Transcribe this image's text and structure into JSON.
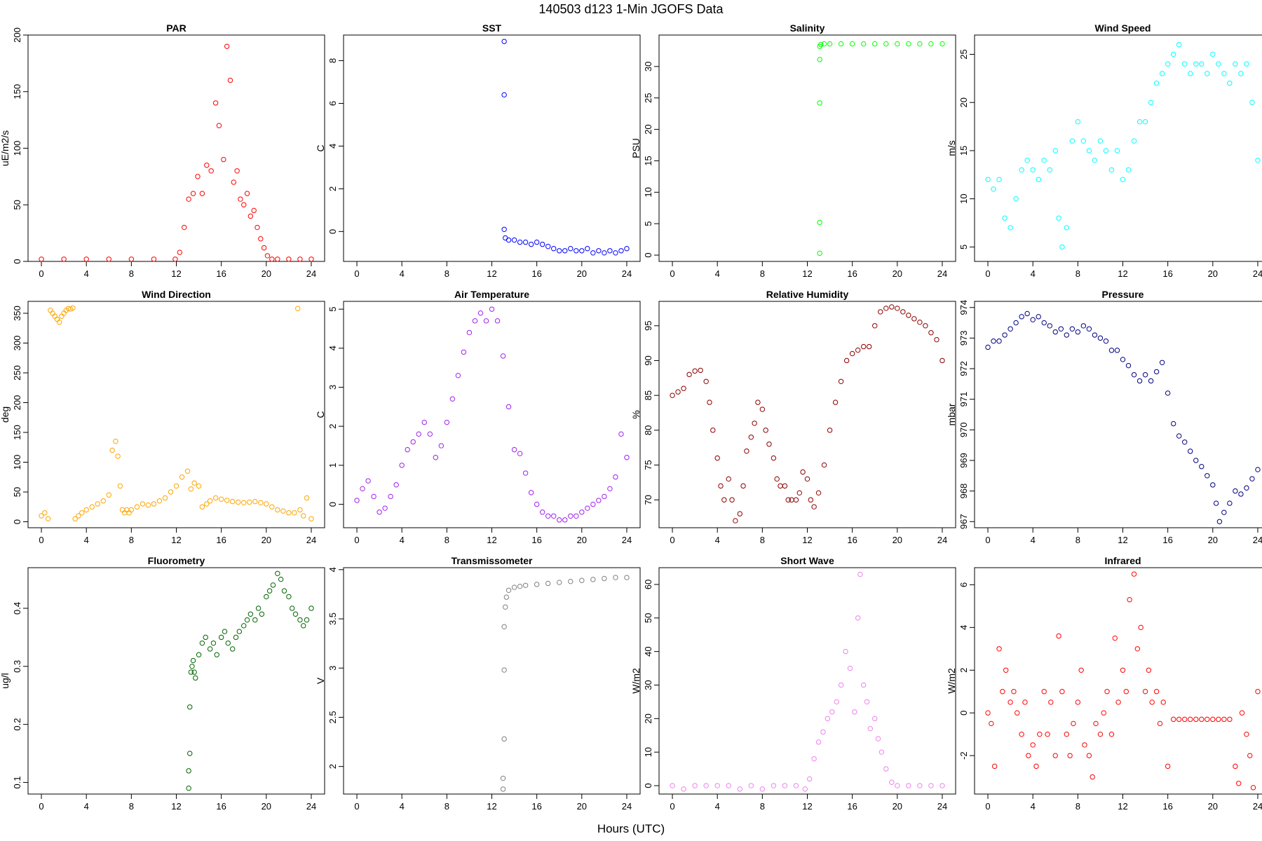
{
  "figure": {
    "title": "140503   d123   1-Min  JGOFS Data",
    "xlabel": "Hours (UTC)"
  },
  "chart_data": [
    {
      "type": "scatter",
      "title": "PAR",
      "ylabel": "uE/m2/s",
      "color": "#ff0000",
      "xlim": [
        0,
        24
      ],
      "ylim": [
        0,
        200
      ],
      "xticks": [
        0,
        4,
        8,
        12,
        16,
        20,
        24
      ],
      "yticks": [
        0,
        50,
        100,
        150,
        200
      ],
      "x": [
        0,
        2,
        4,
        6,
        8,
        10,
        11.9,
        12.3,
        12.7,
        13.1,
        13.5,
        13.9,
        14.3,
        14.7,
        15.1,
        15.5,
        15.8,
        16.2,
        16.5,
        16.8,
        17.1,
        17.4,
        17.7,
        18.0,
        18.3,
        18.6,
        18.9,
        19.2,
        19.5,
        19.8,
        20.1,
        20.5,
        21,
        22,
        23,
        24
      ],
      "y": [
        2,
        2,
        2,
        2,
        2,
        2,
        2,
        8,
        30,
        55,
        60,
        75,
        60,
        85,
        80,
        140,
        120,
        90,
        190,
        160,
        70,
        80,
        55,
        50,
        60,
        40,
        45,
        30,
        20,
        12,
        5,
        2,
        2,
        2,
        2,
        2
      ]
    },
    {
      "type": "scatter",
      "title": "SST",
      "ylabel": "C",
      "color": "#0000ff",
      "xlim": [
        0,
        24
      ],
      "ylim": [
        -1.4,
        9.2
      ],
      "xticks": [
        0,
        4,
        8,
        12,
        16,
        20,
        24
      ],
      "yticks": [
        0,
        2,
        4,
        6,
        8
      ],
      "x": [
        13.1,
        13.1,
        13.1,
        13.2,
        13.5,
        14,
        14.5,
        15,
        15.5,
        16,
        16.5,
        17,
        17.5,
        18,
        18.5,
        19,
        19.5,
        20,
        20.5,
        21,
        21.5,
        22,
        22.5,
        23,
        23.5,
        24
      ],
      "y": [
        8.9,
        6.4,
        0.1,
        -0.3,
        -0.4,
        -0.4,
        -0.5,
        -0.5,
        -0.6,
        -0.5,
        -0.6,
        -0.7,
        -0.8,
        -0.9,
        -0.9,
        -0.8,
        -0.9,
        -0.9,
        -0.8,
        -1.0,
        -0.9,
        -1.0,
        -0.9,
        -1.0,
        -0.9,
        -0.8
      ]
    },
    {
      "type": "scatter",
      "title": "Salinity",
      "ylabel": "PSU",
      "color": "#00ff00",
      "xlim": [
        0,
        24
      ],
      "ylim": [
        -1,
        35
      ],
      "xticks": [
        0,
        4,
        8,
        12,
        16,
        20,
        24
      ],
      "yticks": [
        0,
        5,
        10,
        15,
        20,
        25,
        30
      ],
      "x": [
        13.1,
        13.1,
        13.1,
        13.1,
        13.1,
        13.2,
        13.5,
        14,
        15,
        16,
        17,
        18,
        19,
        20,
        21,
        22,
        23,
        24
      ],
      "y": [
        0.3,
        5.2,
        24.2,
        31.1,
        33.2,
        33.5,
        33.6,
        33.6,
        33.6,
        33.6,
        33.6,
        33.6,
        33.6,
        33.6,
        33.6,
        33.6,
        33.6,
        33.6
      ]
    },
    {
      "type": "scatter",
      "title": "Wind Speed",
      "ylabel": "m/s",
      "color": "#00ffff",
      "xlim": [
        0,
        24
      ],
      "ylim": [
        3.5,
        27
      ],
      "xticks": [
        0,
        4,
        8,
        12,
        16,
        20,
        24
      ],
      "yticks": [
        5,
        10,
        15,
        20,
        25
      ],
      "x": [
        0,
        0.5,
        1,
        1.5,
        2,
        2.5,
        3,
        3.5,
        4,
        4.5,
        5,
        5.5,
        6,
        6.3,
        6.6,
        7,
        7.5,
        8,
        8.5,
        9,
        9.5,
        10,
        10.5,
        11,
        11.5,
        12,
        12.5,
        13,
        13.5,
        14,
        14.5,
        15,
        15.5,
        16,
        16.5,
        17,
        17.5,
        18,
        18.5,
        19,
        19.5,
        20,
        20.5,
        21,
        21.5,
        22,
        22.5,
        23,
        23.5,
        24
      ],
      "y": [
        12,
        11,
        12,
        8,
        7,
        10,
        13,
        14,
        13,
        12,
        14,
        13,
        15,
        8,
        5,
        7,
        16,
        18,
        16,
        15,
        14,
        16,
        15,
        13,
        15,
        12,
        13,
        16,
        18,
        18,
        20,
        22,
        23,
        24,
        25,
        26,
        24,
        23,
        24,
        24,
        23,
        25,
        24,
        23,
        22,
        24,
        23,
        24,
        20,
        14
      ]
    },
    {
      "type": "scatter",
      "title": "Wind Direction",
      "ylabel": "deg",
      "color": "#ffa500",
      "xlim": [
        0,
        24
      ],
      "ylim": [
        -10,
        370
      ],
      "xticks": [
        0,
        4,
        8,
        12,
        16,
        20,
        24
      ],
      "yticks": [
        0,
        50,
        100,
        150,
        200,
        250,
        300,
        350
      ],
      "x": [
        0,
        0.3,
        0.6,
        0.8,
        1.0,
        1.2,
        1.4,
        1.6,
        1.8,
        2.0,
        2.2,
        2.4,
        2.6,
        2.8,
        3.0,
        3.3,
        3.6,
        4,
        4.5,
        5,
        5.5,
        6,
        6.3,
        6.6,
        6.8,
        7.0,
        7.2,
        7.4,
        7.6,
        7.8,
        8,
        8.5,
        9,
        9.5,
        10,
        10.5,
        11,
        11.5,
        12,
        12.5,
        13,
        13.3,
        13.6,
        14,
        14.3,
        14.7,
        15,
        15.5,
        16,
        16.5,
        17,
        17.5,
        18,
        18.5,
        19,
        19.5,
        20,
        20.5,
        21,
        21.5,
        22,
        22.5,
        22.8,
        23,
        23.3,
        23.6,
        24
      ],
      "y": [
        10,
        15,
        5,
        355,
        350,
        345,
        340,
        335,
        345,
        350,
        355,
        358,
        357,
        359,
        5,
        10,
        15,
        20,
        25,
        30,
        35,
        45,
        120,
        135,
        110,
        60,
        20,
        15,
        20,
        15,
        20,
        25,
        30,
        28,
        30,
        35,
        40,
        50,
        60,
        75,
        85,
        55,
        65,
        60,
        25,
        30,
        35,
        40,
        38,
        36,
        34,
        33,
        32,
        33,
        34,
        32,
        30,
        25,
        20,
        18,
        15,
        15,
        358,
        20,
        10,
        40,
        5
      ]
    },
    {
      "type": "scatter",
      "title": "Air Temperature",
      "ylabel": "C",
      "color": "#a020f0",
      "xlim": [
        0,
        24
      ],
      "ylim": [
        -0.6,
        5.2
      ],
      "xticks": [
        0,
        4,
        8,
        12,
        16,
        20,
        24
      ],
      "yticks": [
        0,
        1,
        2,
        3,
        4,
        5
      ],
      "x": [
        0,
        0.5,
        1,
        1.5,
        2,
        2.5,
        3,
        3.5,
        4,
        4.5,
        5,
        5.5,
        6,
        6.5,
        7,
        7.5,
        8,
        8.5,
        9,
        9.5,
        10,
        10.5,
        11,
        11.5,
        12,
        12.5,
        13,
        13.5,
        14,
        14.5,
        15,
        15.5,
        16,
        16.5,
        17,
        17.5,
        18,
        18.5,
        19,
        19.5,
        20,
        20.5,
        21,
        21.5,
        22,
        22.5,
        23,
        23.5,
        24
      ],
      "y": [
        0.1,
        0.4,
        0.6,
        0.2,
        -0.2,
        -0.1,
        0.2,
        0.5,
        1.0,
        1.4,
        1.6,
        1.8,
        2.1,
        1.8,
        1.2,
        1.5,
        2.1,
        2.7,
        3.3,
        3.9,
        4.4,
        4.7,
        4.9,
        4.7,
        5.0,
        4.7,
        3.8,
        2.5,
        1.4,
        1.3,
        0.8,
        0.3,
        0.0,
        -0.2,
        -0.3,
        -0.3,
        -0.4,
        -0.4,
        -0.3,
        -0.3,
        -0.2,
        -0.1,
        0.0,
        0.1,
        0.2,
        0.4,
        0.7,
        1.8,
        1.2
      ]
    },
    {
      "type": "scatter",
      "title": "Relative Humidity",
      "ylabel": "%",
      "color": "#8b0000",
      "xlim": [
        0,
        24
      ],
      "ylim": [
        66,
        98.5
      ],
      "xticks": [
        0,
        4,
        8,
        12,
        16,
        20,
        24
      ],
      "yticks": [
        70,
        75,
        80,
        85,
        90,
        95
      ],
      "x": [
        0,
        0.5,
        1,
        1.5,
        2,
        2.5,
        3,
        3.3,
        3.6,
        4,
        4.3,
        4.6,
        5,
        5.3,
        5.6,
        6,
        6.3,
        6.6,
        7,
        7.3,
        7.6,
        8,
        8.3,
        8.6,
        9,
        9.3,
        9.6,
        10,
        10.3,
        10.6,
        11,
        11.3,
        11.6,
        12,
        12.3,
        12.6,
        13,
        13.5,
        14,
        14.5,
        15,
        15.5,
        16,
        16.5,
        17,
        17.5,
        18,
        18.5,
        19,
        19.5,
        20,
        20.5,
        21,
        21.5,
        22,
        22.5,
        23,
        23.5,
        24
      ],
      "y": [
        85,
        85.5,
        86,
        88,
        88.5,
        88.6,
        87,
        84,
        80,
        76,
        72,
        70,
        73,
        70,
        67,
        68,
        72,
        77,
        79,
        81,
        84,
        83,
        80,
        78,
        76,
        73,
        72,
        72,
        70,
        70,
        70,
        71,
        74,
        73,
        70,
        69,
        71,
        75,
        80,
        84,
        87,
        90,
        91,
        91.5,
        92,
        92,
        95,
        97,
        97.5,
        97.7,
        97.5,
        97,
        96.5,
        96,
        95.5,
        95,
        94,
        93,
        90
      ]
    },
    {
      "type": "scatter",
      "title": "Pressure",
      "ylabel": "mbar",
      "color": "#000080",
      "xlim": [
        0,
        24
      ],
      "ylim": [
        966.8,
        974.2
      ],
      "xticks": [
        0,
        4,
        8,
        12,
        16,
        20,
        24
      ],
      "yticks": [
        967,
        968,
        969,
        970,
        971,
        972,
        973,
        974
      ],
      "x": [
        0,
        0.5,
        1,
        1.5,
        2,
        2.5,
        3,
        3.5,
        4,
        4.5,
        5,
        5.5,
        6,
        6.5,
        7,
        7.5,
        8,
        8.5,
        9,
        9.5,
        10,
        10.5,
        11,
        11.5,
        12,
        12.5,
        13,
        13.5,
        14,
        14.5,
        15,
        15.5,
        16,
        16.5,
        17,
        17.5,
        18,
        18.5,
        19,
        19.5,
        20,
        20.3,
        20.6,
        21,
        21.5,
        22,
        22.5,
        23,
        23.5,
        24
      ],
      "y": [
        972.7,
        972.9,
        972.9,
        973.1,
        973.3,
        973.5,
        973.7,
        973.8,
        973.6,
        973.7,
        973.5,
        973.4,
        973.2,
        973.3,
        973.1,
        973.3,
        973.2,
        973.4,
        973.3,
        973.1,
        973.0,
        972.9,
        972.6,
        972.6,
        972.3,
        972.1,
        971.8,
        971.6,
        971.8,
        971.6,
        971.9,
        972.2,
        971.2,
        970.2,
        969.8,
        969.6,
        969.3,
        969.0,
        968.8,
        968.5,
        968.2,
        967.6,
        967.0,
        967.3,
        967.6,
        968.0,
        967.9,
        968.1,
        968.4,
        968.7
      ]
    },
    {
      "type": "scatter",
      "title": "Fluorometry",
      "ylabel": "ug/l",
      "color": "#006400",
      "xlim": [
        0,
        24
      ],
      "ylim": [
        0.08,
        0.47
      ],
      "xticks": [
        0,
        4,
        8,
        12,
        16,
        20,
        24
      ],
      "yticks": [
        0.1,
        0.2,
        0.3,
        0.4
      ],
      "x": [
        13.1,
        13.1,
        13.2,
        13.2,
        13.3,
        13.4,
        13.5,
        13.6,
        13.7,
        14,
        14.3,
        14.6,
        15,
        15.3,
        15.6,
        16,
        16.3,
        16.6,
        17,
        17.3,
        17.6,
        18,
        18.3,
        18.6,
        19,
        19.3,
        19.6,
        20,
        20.3,
        20.6,
        21,
        21.3,
        21.6,
        22,
        22.3,
        22.6,
        23,
        23.3,
        23.6,
        24
      ],
      "y": [
        0.09,
        0.12,
        0.15,
        0.23,
        0.29,
        0.3,
        0.31,
        0.29,
        0.28,
        0.32,
        0.34,
        0.35,
        0.33,
        0.34,
        0.32,
        0.35,
        0.36,
        0.34,
        0.33,
        0.35,
        0.36,
        0.37,
        0.38,
        0.39,
        0.38,
        0.4,
        0.39,
        0.42,
        0.43,
        0.44,
        0.46,
        0.45,
        0.43,
        0.42,
        0.4,
        0.39,
        0.38,
        0.37,
        0.38,
        0.4
      ]
    },
    {
      "type": "scatter",
      "title": "Transmissometer",
      "ylabel": "V",
      "color": "#808080",
      "xlim": [
        0,
        24
      ],
      "ylim": [
        1.72,
        4.02
      ],
      "xticks": [
        0,
        4,
        8,
        12,
        16,
        20,
        24
      ],
      "yticks": [
        2.0,
        2.5,
        3.0,
        3.5,
        4.0
      ],
      "x": [
        13.0,
        13.0,
        13.1,
        13.1,
        13.1,
        13.2,
        13.3,
        13.5,
        14,
        14.5,
        15,
        16,
        17,
        18,
        19,
        20,
        21,
        22,
        23,
        24
      ],
      "y": [
        1.77,
        1.88,
        2.28,
        2.98,
        3.42,
        3.62,
        3.72,
        3.79,
        3.82,
        3.83,
        3.84,
        3.85,
        3.86,
        3.87,
        3.88,
        3.89,
        3.9,
        3.91,
        3.92,
        3.92
      ]
    },
    {
      "type": "scatter",
      "title": "Short Wave",
      "ylabel": "W/m2",
      "color": "#ee82ee",
      "xlim": [
        0,
        24
      ],
      "ylim": [
        -2.5,
        65
      ],
      "xticks": [
        0,
        4,
        8,
        12,
        16,
        20,
        24
      ],
      "yticks": [
        0,
        10,
        20,
        30,
        40,
        50,
        60
      ],
      "x": [
        0,
        1,
        2,
        3,
        4,
        5,
        6,
        7,
        8,
        9,
        10,
        11,
        11.8,
        12.2,
        12.6,
        13,
        13.4,
        13.8,
        14.2,
        14.6,
        15,
        15.4,
        15.8,
        16.2,
        16.5,
        16.7,
        17,
        17.3,
        17.6,
        18,
        18.3,
        18.6,
        19,
        19.5,
        20,
        21,
        22,
        23,
        24
      ],
      "y": [
        0,
        -1,
        0,
        0,
        0,
        0,
        -1,
        0,
        -1,
        0,
        0,
        0,
        -1,
        2,
        8,
        13,
        16,
        20,
        22,
        25,
        30,
        40,
        35,
        22,
        50,
        63,
        30,
        25,
        17,
        20,
        14,
        10,
        5,
        1,
        0,
        0,
        0,
        0,
        0
      ]
    },
    {
      "type": "scatter",
      "title": "Infrared",
      "ylabel": "W/m2",
      "color": "#ff0000",
      "xlim": [
        0,
        24
      ],
      "ylim": [
        -3.8,
        6.8
      ],
      "xticks": [
        0,
        4,
        8,
        12,
        16,
        20,
        24
      ],
      "yticks": [
        -2,
        0,
        2,
        4,
        6
      ],
      "x": [
        0,
        0.3,
        0.6,
        1,
        1.3,
        1.6,
        2,
        2.3,
        2.6,
        3,
        3.3,
        3.6,
        4,
        4.3,
        4.6,
        5,
        5.3,
        5.6,
        6,
        6.3,
        6.6,
        7,
        7.3,
        7.6,
        8,
        8.3,
        8.6,
        9,
        9.3,
        9.6,
        10,
        10.3,
        10.6,
        11,
        11.3,
        11.6,
        12,
        12.3,
        12.6,
        13,
        13.3,
        13.6,
        14,
        14.3,
        14.6,
        15,
        15.3,
        15.6,
        16,
        16.5,
        17,
        17.5,
        18,
        18.5,
        19,
        19.5,
        20,
        20.5,
        21,
        21.5,
        22,
        22.3,
        22.6,
        23,
        23.3,
        23.6,
        24
      ],
      "y": [
        0,
        -0.5,
        -2.5,
        3,
        1,
        2,
        0.5,
        1,
        0,
        -1,
        0.5,
        -2,
        -1.5,
        -2.5,
        -1,
        1,
        -1,
        0.5,
        -2,
        3.6,
        1,
        -1,
        -2,
        -0.5,
        0.5,
        2,
        -1.5,
        -2,
        -3,
        -0.5,
        -1,
        0,
        1,
        -1,
        3.5,
        0.5,
        2,
        1,
        5.3,
        6.5,
        3,
        4,
        1,
        2,
        0.5,
        1,
        -0.5,
        0.5,
        -2.5,
        -0.3,
        -0.3,
        -0.3,
        -0.3,
        -0.3,
        -0.3,
        -0.3,
        -0.3,
        -0.3,
        -0.3,
        -0.3,
        -2.5,
        -3.3,
        0,
        -1,
        -2,
        -3.5,
        1
      ]
    }
  ]
}
